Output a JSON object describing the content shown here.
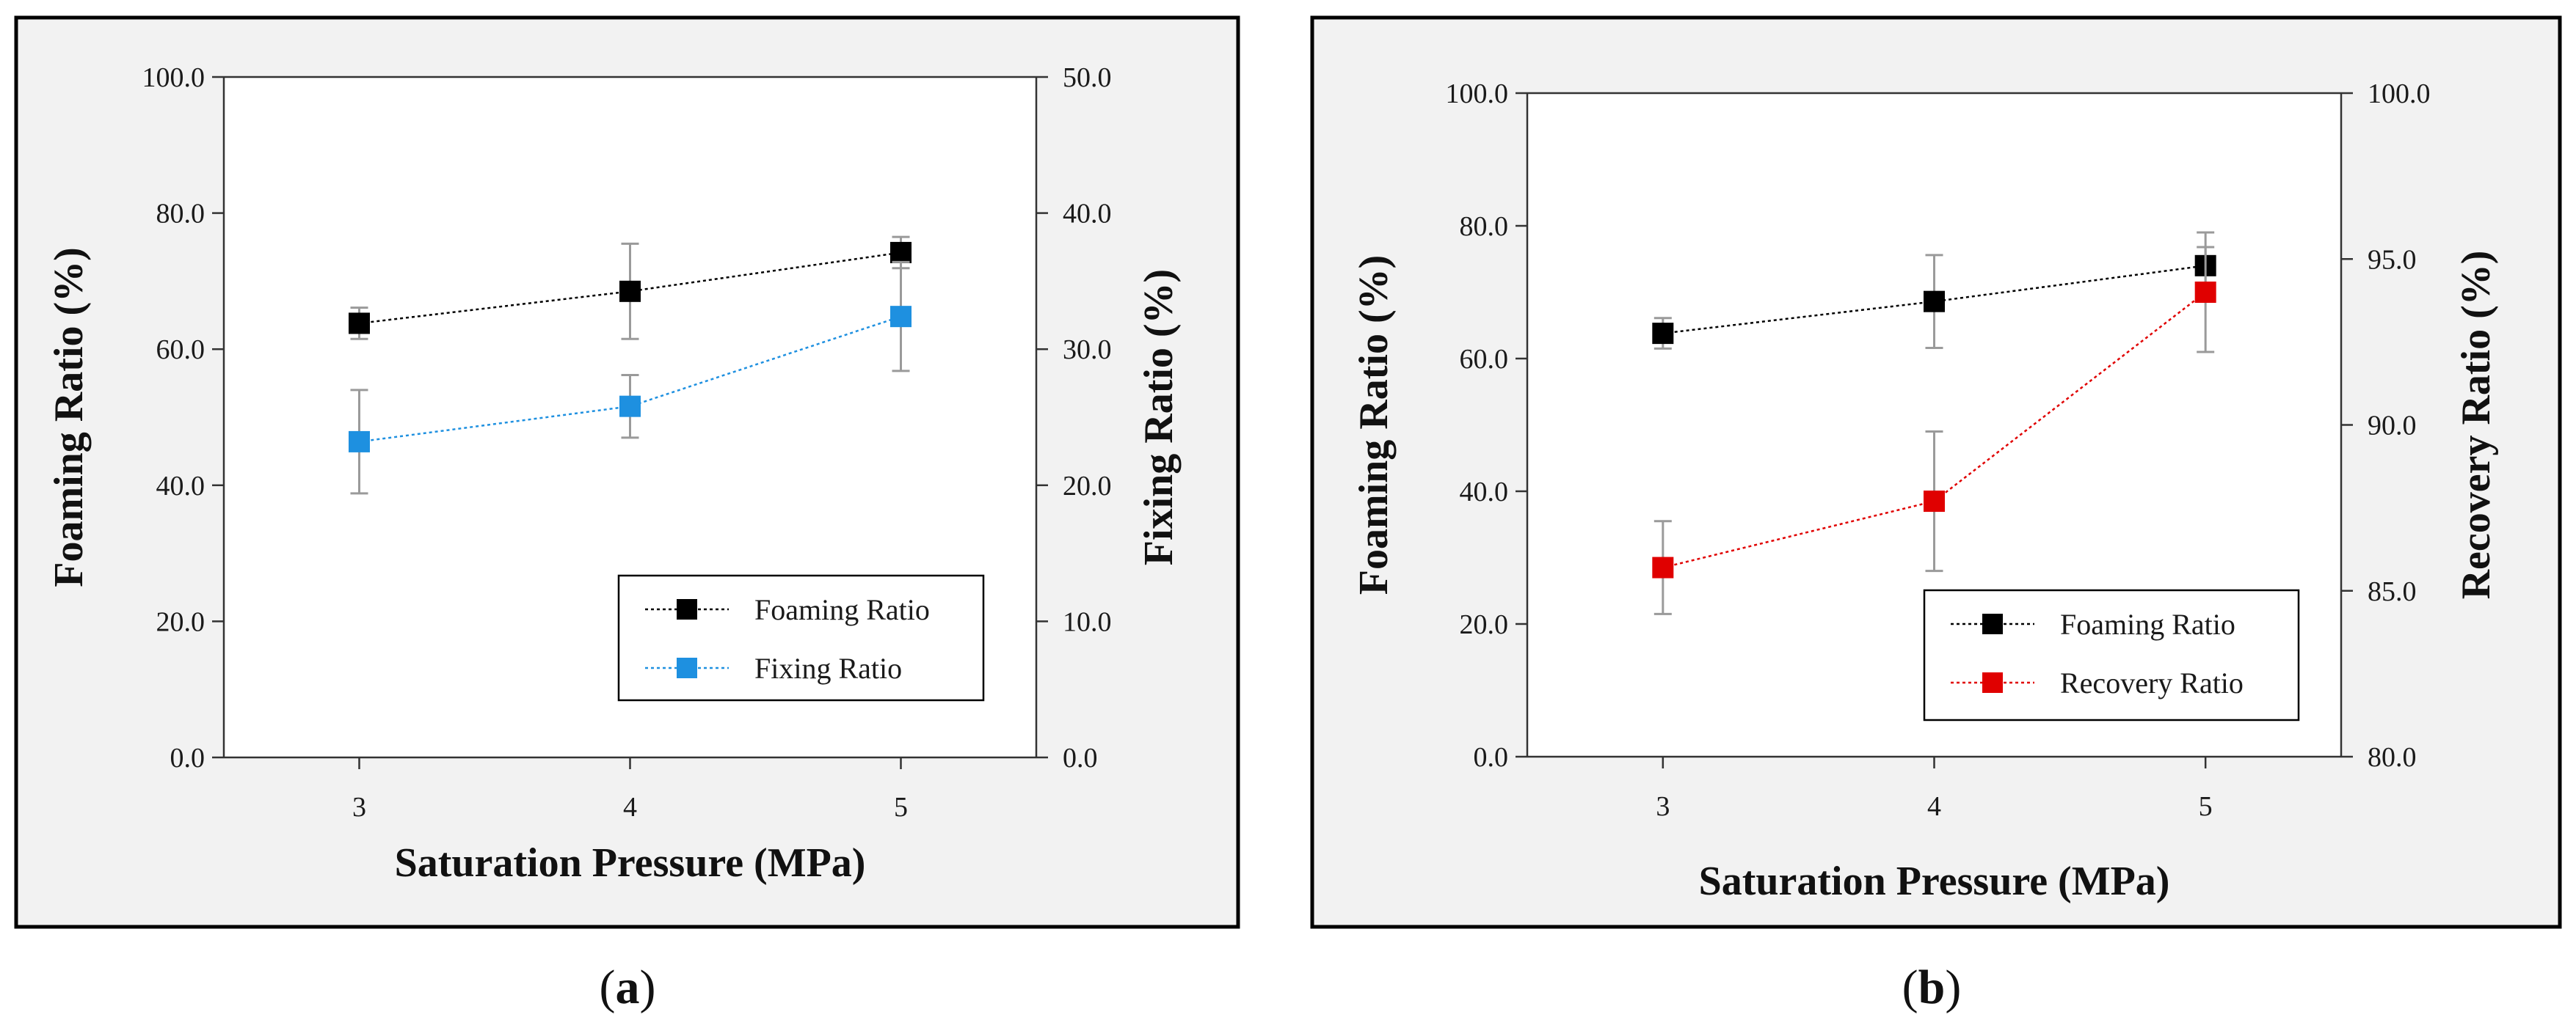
{
  "chart_data": [
    {
      "id": "a",
      "type": "line",
      "caption_letter": "a",
      "caption_open": "(",
      "caption_close": ")",
      "xlabel": "Saturation Pressure (MPa)",
      "ylabel": "Foaming Ratio (%)",
      "y2label": "Fixing Ratio (%)",
      "x": [
        3,
        4,
        5
      ],
      "x_tick_labels": [
        "3",
        "4",
        "5"
      ],
      "xlim": [
        2.5,
        5.5
      ],
      "ylim": [
        0,
        100
      ],
      "y2lim": [
        0,
        50
      ],
      "y_ticks": [
        0,
        20,
        40,
        60,
        80,
        100
      ],
      "y_tick_labels": [
        "0.0",
        "20.0",
        "40.0",
        "60.0",
        "80.0",
        "100.0"
      ],
      "y2_ticks": [
        0,
        10,
        20,
        30,
        40,
        50
      ],
      "y2_tick_labels": [
        "0.0",
        "10.0",
        "20.0",
        "30.0",
        "40.0",
        "50.0"
      ],
      "legend_position": "bottom-right",
      "series": [
        {
          "name": "Foaming Ratio",
          "axis": "left",
          "color": "#000000",
          "values": [
            63.8,
            68.5,
            74.2
          ],
          "errors": [
            2.3,
            7.0,
            2.3
          ]
        },
        {
          "name": "Fixing Ratio",
          "axis": "right",
          "color": "#1e90e0",
          "values": [
            23.2,
            25.8,
            32.4
          ],
          "errors": [
            3.8,
            2.3,
            4.0
          ]
        }
      ]
    },
    {
      "id": "b",
      "type": "line",
      "caption_letter": "b",
      "caption_open": "(",
      "caption_close": ")",
      "xlabel": "Saturation Pressure (MPa)",
      "ylabel": "Foaming Ratio (%)",
      "y2label": "Recovery Ratio (%)",
      "x": [
        3,
        4,
        5
      ],
      "x_tick_labels": [
        "3",
        "4",
        "5"
      ],
      "xlim": [
        2.5,
        5.5
      ],
      "ylim": [
        0,
        100
      ],
      "y2lim": [
        80,
        100
      ],
      "y_ticks": [
        0,
        20,
        40,
        60,
        80,
        100
      ],
      "y_tick_labels": [
        "0.0",
        "20.0",
        "40.0",
        "60.0",
        "80.0",
        "100.0"
      ],
      "y2_ticks": [
        80,
        85,
        90,
        95,
        100
      ],
      "y2_tick_labels": [
        "80.0",
        "85.0",
        "90.0",
        "95.0",
        "100.0"
      ],
      "legend_position": "bottom-right",
      "series": [
        {
          "name": "Foaming Ratio",
          "axis": "left",
          "color": "#000000",
          "values": [
            63.8,
            68.6,
            74.0
          ],
          "errors": [
            2.3,
            7.0,
            2.8
          ]
        },
        {
          "name": "Recovery Ratio",
          "axis": "right",
          "color": "#e00000",
          "values": [
            85.7,
            87.7,
            94.0
          ],
          "errors": [
            1.4,
            2.1,
            1.8
          ]
        }
      ]
    }
  ]
}
